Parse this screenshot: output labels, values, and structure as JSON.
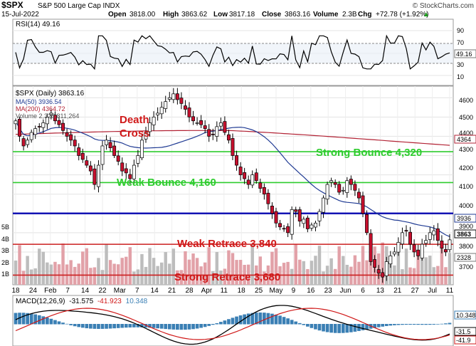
{
  "header": {
    "symbol": "$SPX",
    "name": "S&P 500 Large Cap INDX",
    "brand": "© StockCharts.com",
    "date": "15-Jul-2022",
    "open_label": "Open",
    "open": "3818.00",
    "high_label": "High",
    "high": "3863.62",
    "low_label": "Low",
    "low": "3817.18",
    "close_label": "Close",
    "close": "3863.16",
    "volume_label": "Volume",
    "volume": "2.3B",
    "chg_label": "Chg",
    "chg": "+72.78 (+1.92%)",
    "chg_arrow": "▲"
  },
  "rsi": {
    "label": "RSI(14) 49.16",
    "value_badge": "49.16",
    "ticks": [
      "90",
      "70",
      "50",
      "30",
      "10"
    ]
  },
  "main": {
    "legend": [
      {
        "text": "$SPX (Daily) 3863.16",
        "color": "#000000"
      },
      {
        "text": "MA(50) 3936.54",
        "color": "#1f3a93"
      },
      {
        "text": "MA(200) 4364.72",
        "color": "#b22234"
      },
      {
        "text": "Volume 2,328,811,264",
        "color": "#777777"
      }
    ],
    "price_ticks": [
      "4600",
      "4500",
      "4400",
      "4300",
      "4200",
      "4100",
      "4000",
      "3900",
      "3800",
      "3700"
    ],
    "badges": [
      "4364",
      "3936",
      "3863",
      "2328"
    ],
    "volume_ticks": [
      "5B",
      "4B",
      "3B",
      "2B",
      "1B"
    ],
    "annotations": {
      "death_cross_1": "Death",
      "death_cross_2": "Cross",
      "strong_bounce": "Strong Bounce 4,320",
      "weak_bounce": "Weak Bounce 4,160",
      "weak_retrace": "Weak Retrace 3,840",
      "strong_retrace": "Strong Retrace 3,680"
    }
  },
  "xaxis": {
    "labels": [
      "18",
      "24",
      "Feb",
      "7",
      "14",
      "22",
      "Mar",
      "7",
      "14",
      "21",
      "28",
      "Apr",
      "11",
      "18",
      "25",
      "May",
      "9",
      "16",
      "23",
      "Jun",
      "6",
      "13",
      "21",
      "27",
      "Jul",
      "11"
    ]
  },
  "macd": {
    "label": "MACD(12,26,9)",
    "v1": "-31.575",
    "v2": "-41.923",
    "v3": "10.348",
    "badges": [
      "10.348",
      "-31.5",
      "-41.9"
    ]
  },
  "chart_data": {
    "type": "candlestick",
    "title": "$SPX S&P 500 Large Cap INDX",
    "ylim": [
      3630,
      4660
    ],
    "horizontal_lines": [
      {
        "label": "Strong Bounce 4,320",
        "value": 4320,
        "color": "#2ecc2e"
      },
      {
        "label": "Weak Bounce 4,160",
        "value": 4160,
        "color": "#2ecc2e"
      },
      {
        "label": "",
        "value": 4000,
        "color": "#1414b4"
      },
      {
        "label": "Weak Retrace 3,840",
        "value": 3840,
        "color": "#cc1f1f"
      },
      {
        "label": "Strong Retrace 3,680",
        "value": 3680,
        "color": "#cc1f1f"
      }
    ],
    "closes": [
      4480,
      4400,
      4350,
      4380,
      4420,
      4440,
      4450,
      4470,
      4500,
      4520,
      4480,
      4460,
      4430,
      4400,
      4380,
      4350,
      4300,
      4280,
      4250,
      4220,
      4150,
      4250,
      4350,
      4380,
      4340,
      4300,
      4270,
      4220,
      4210,
      4180,
      4250,
      4300,
      4380,
      4420,
      4470,
      4500,
      4520,
      4550,
      4580,
      4600,
      4620,
      4590,
      4570,
      4540,
      4500,
      4480,
      4470,
      4460,
      4440,
      4400,
      4410,
      4450,
      4470,
      4420,
      4380,
      4300,
      4250,
      4200,
      4180,
      4150,
      4200,
      4170,
      4130,
      4100,
      4050,
      4000,
      3950,
      3930,
      3920,
      3900,
      4020,
      4010,
      3960,
      3970,
      3920,
      3940,
      3950,
      4010,
      4080,
      4150,
      4170,
      4150,
      4110,
      4120,
      4170,
      4150,
      4120,
      4080,
      4000,
      3900,
      3750,
      3720,
      3690,
      3670,
      3750,
      3780,
      3800,
      3850,
      3900,
      3910,
      3840,
      3800,
      3780,
      3840,
      3860,
      3900,
      3910,
      3860,
      3820,
      3800,
      3863
    ],
    "ma50_last": 3936.54,
    "ma200_last": 4364.72,
    "volume_last": 2328811264,
    "rsi_last": 49.16,
    "macd": {
      "macd": -31.575,
      "signal": -41.923,
      "histogram": 10.348
    }
  }
}
